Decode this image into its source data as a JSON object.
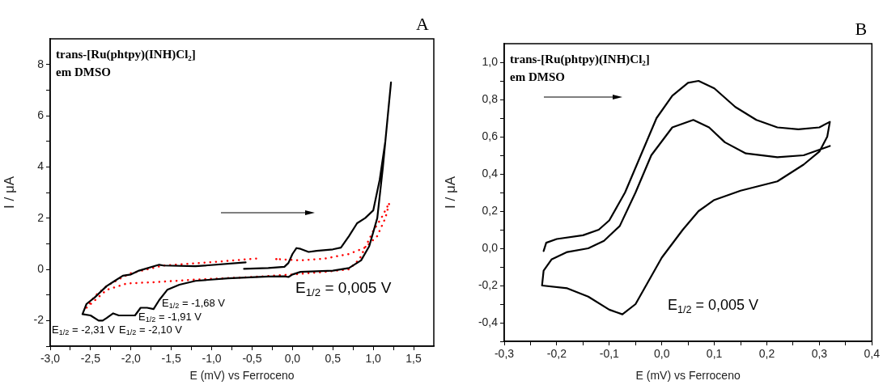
{
  "chart_data": [
    {
      "type": "line",
      "title": "A",
      "xlabel": "E (mV) vs Ferroceno",
      "ylabel": "I / μA",
      "xlim": [
        -3,
        1.75
      ],
      "ylim": [
        -3,
        9
      ],
      "xticks": [
        {
          "value": -3,
          "label": "-3,0"
        },
        {
          "value": -2.75,
          "label": null
        },
        {
          "value": -2.5,
          "label": "-2,5"
        },
        {
          "value": -2.25,
          "label": null
        },
        {
          "value": -2,
          "label": "-2,0"
        },
        {
          "value": -1.75,
          "label": null
        },
        {
          "value": -1.5,
          "label": "-1,5"
        },
        {
          "value": -1.25,
          "label": null
        },
        {
          "value": -1,
          "label": "-1,0"
        },
        {
          "value": -0.75,
          "label": null
        },
        {
          "value": -0.5,
          "label": "-0,5"
        },
        {
          "value": -0.25,
          "label": null
        },
        {
          "value": 0,
          "label": "0,0"
        },
        {
          "value": 0.25,
          "label": null
        },
        {
          "value": 0.5,
          "label": "0,5"
        },
        {
          "value": 0.75,
          "label": null
        },
        {
          "value": 1,
          "label": "1,0"
        },
        {
          "value": 1.25,
          "label": null
        },
        {
          "value": 1.5,
          "label": "1,5"
        }
      ],
      "yticks": [
        {
          "value": -3,
          "label": null
        },
        -2,
        {
          "value": -1,
          "label": null
        },
        0,
        {
          "value": 1,
          "label": null
        },
        2,
        {
          "value": 3,
          "label": null
        },
        4,
        {
          "value": 5,
          "label": null
        },
        6,
        {
          "value": 7,
          "label": null
        },
        8
      ],
      "series": [
        {
          "color": "#000000",
          "line_style": "solid",
          "x": [
            -0.6,
            -0.3,
            -0.1,
            -0.05,
            0.0,
            0.05,
            0.1,
            0.2,
            0.3,
            0.5,
            0.6,
            0.7,
            0.8,
            0.9,
            1.0,
            1.08,
            1.15,
            1.22,
            1.18,
            1.12,
            1.05,
            0.95,
            0.85,
            0.7,
            0.5,
            0.1,
            0.0,
            -0.05,
            -0.1,
            -0.3,
            -0.8,
            -1.2,
            -1.4,
            -1.55,
            -1.65,
            -1.72,
            -1.8,
            -1.88,
            -1.95,
            -2.05,
            -2.15,
            -2.22,
            -2.3,
            -2.35,
            -2.4,
            -2.5,
            -2.6,
            -2.55,
            -2.45,
            -2.3,
            -2.2,
            -2.1,
            -2.0,
            -1.9,
            -1.65,
            -1.6,
            -1.2,
            -0.58
          ],
          "values": [
            0.02,
            0.05,
            0.1,
            0.25,
            0.6,
            0.83,
            0.8,
            0.68,
            0.72,
            0.78,
            0.85,
            1.3,
            1.8,
            2.0,
            2.3,
            3.5,
            5.0,
            7.3,
            6.0,
            4.0,
            2.0,
            0.9,
            0.35,
            0.05,
            -0.05,
            -0.1,
            -0.2,
            -0.3,
            -0.27,
            -0.28,
            -0.35,
            -0.45,
            -0.6,
            -0.8,
            -1.2,
            -1.55,
            -1.5,
            -1.5,
            -1.8,
            -1.8,
            -1.8,
            -1.72,
            -1.9,
            -2.0,
            -2.0,
            -1.8,
            -1.75,
            -1.35,
            -1.1,
            -0.65,
            -0.45,
            -0.25,
            -0.2,
            -0.05,
            0.18,
            0.15,
            0.12,
            0.27
          ]
        },
        {
          "color": "#ff0000",
          "line_style": "dotted",
          "x": [
            -0.45,
            -1.0,
            -1.6,
            -1.8,
            -2.0,
            -2.1,
            -2.3,
            -2.45,
            -2.55,
            -2.3,
            -2.05,
            -1.7,
            -1.2,
            -0.5,
            0.0,
            0.4,
            0.7,
            0.83,
            1.0,
            1.1,
            1.2,
            1.15,
            1.05,
            0.9,
            0.7,
            0.4,
            0.1,
            -0.2
          ],
          "values": [
            0.42,
            0.28,
            0.15,
            0.0,
            -0.15,
            -0.3,
            -0.65,
            -1.05,
            -1.5,
            -0.8,
            -0.55,
            -0.5,
            -0.4,
            -0.3,
            -0.2,
            -0.1,
            0.0,
            0.4,
            1.5,
            2.0,
            2.6,
            2.0,
            1.3,
            0.85,
            0.6,
            0.42,
            0.35,
            0.4
          ]
        }
      ],
      "annotations": [
        "trans-[Ru(phtpy)(INH)Cl₂]",
        "em DMSO",
        "E$_{1/2}$ = 0,005 V",
        "E$_{1/2}$ = -1,68 V",
        "E$_{1/2}$ = -1,91 V",
        "E$_{1/2}$ = -2,31 V",
        "E$_{1/2}$ = -2,10 V"
      ]
    },
    {
      "type": "line",
      "title": "B",
      "xlabel": "E (mV) vs Ferroceno",
      "ylabel": "I / μA",
      "xlim": [
        -0.3,
        0.4
      ],
      "ylim": [
        -0.5,
        1.1
      ],
      "xticks": [
        {
          "value": -0.3,
          "label": "-0,3"
        },
        {
          "value": -0.25,
          "label": null
        },
        {
          "value": -0.2,
          "label": "-0,2"
        },
        {
          "value": -0.15,
          "label": null
        },
        {
          "value": -0.1,
          "label": "-0,1"
        },
        {
          "value": -0.05,
          "label": null
        },
        {
          "value": 0,
          "label": "0,0"
        },
        {
          "value": 0.05,
          "label": null
        },
        {
          "value": 0.1,
          "label": "0,1"
        },
        {
          "value": 0.15,
          "label": null
        },
        {
          "value": 0.2,
          "label": "0,2"
        },
        {
          "value": 0.25,
          "label": null
        },
        {
          "value": 0.3,
          "label": "0,3"
        },
        {
          "value": 0.35,
          "label": null
        },
        {
          "value": 0.4,
          "label": "0,4"
        }
      ],
      "yticks": [
        {
          "value": -0.5,
          "label": null
        },
        {
          "value": -0.4,
          "label": "-0,4"
        },
        {
          "value": -0.3,
          "label": null
        },
        {
          "value": -0.2,
          "label": "-0,2"
        },
        {
          "value": -0.1,
          "label": null
        },
        {
          "value": 0,
          "label": "0,0"
        },
        {
          "value": 0.1,
          "label": null
        },
        {
          "value": 0.2,
          "label": "0,2"
        },
        {
          "value": 0.3,
          "label": null
        },
        {
          "value": 0.4,
          "label": "0,4"
        },
        {
          "value": 0.5,
          "label": null
        },
        {
          "value": 0.6,
          "label": "0,6"
        },
        {
          "value": 0.7,
          "label": null
        },
        {
          "value": 0.8,
          "label": "0,8"
        },
        {
          "value": 0.9,
          "label": null
        },
        {
          "value": 1.0,
          "label": "1,0"
        }
      ],
      "series": [
        {
          "color": "#000000",
          "line_style": "solid",
          "x": [
            -0.225,
            -0.22,
            -0.2,
            -0.15,
            -0.12,
            -0.1,
            -0.07,
            -0.04,
            -0.01,
            0.02,
            0.05,
            0.07,
            0.1,
            0.14,
            0.18,
            0.22,
            0.26,
            0.3,
            0.32,
            0.315,
            0.3,
            0.27,
            0.22,
            0.15,
            0.1,
            0.07,
            0.04,
            0.0,
            -0.03,
            -0.05,
            -0.075,
            -0.1,
            -0.14,
            -0.18,
            -0.228,
            -0.225,
            -0.21,
            -0.18,
            -0.14,
            -0.11,
            -0.08,
            -0.05,
            -0.02,
            0.02,
            0.06,
            0.09,
            0.12,
            0.16,
            0.22,
            0.27,
            0.32
          ],
          "values": [
            -0.015,
            0.03,
            0.05,
            0.07,
            0.1,
            0.15,
            0.3,
            0.5,
            0.7,
            0.82,
            0.89,
            0.9,
            0.86,
            0.76,
            0.69,
            0.65,
            0.64,
            0.65,
            0.68,
            0.6,
            0.52,
            0.45,
            0.36,
            0.31,
            0.26,
            0.2,
            0.1,
            -0.05,
            -0.2,
            -0.3,
            -0.355,
            -0.33,
            -0.26,
            -0.215,
            -0.2,
            -0.12,
            -0.06,
            -0.02,
            0.0,
            0.04,
            0.12,
            0.3,
            0.5,
            0.65,
            0.69,
            0.65,
            0.57,
            0.51,
            0.49,
            0.5,
            0.55
          ]
        }
      ],
      "annotations": [
        "trans-[Ru(phtpy)(INH)Cl₂]",
        "em DMSO",
        "E$_{1/2}$ = 0,005 V"
      ]
    }
  ]
}
